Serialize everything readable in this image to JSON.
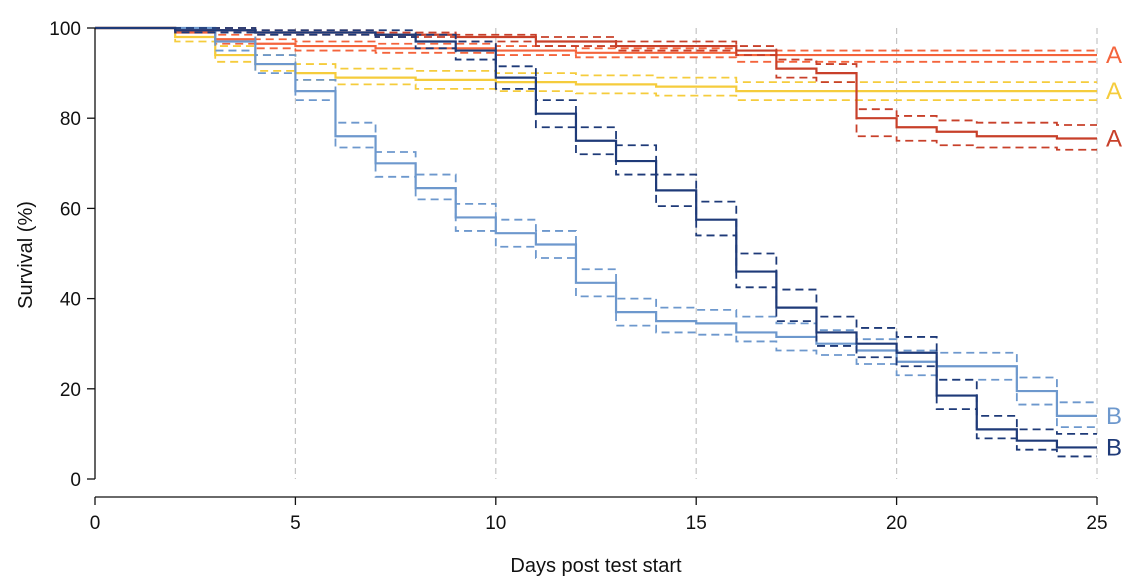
{
  "chart_data": {
    "type": "line",
    "step": true,
    "xlabel": "Days post test start",
    "ylabel": "Survival (%)",
    "xlim": [
      0,
      25
    ],
    "ylim": [
      0,
      100
    ],
    "xticks": [
      0,
      5,
      10,
      15,
      20,
      25
    ],
    "yticks": [
      0,
      20,
      40,
      60,
      80,
      100
    ],
    "vertical_reference_lines": [
      5,
      10,
      15,
      20,
      25
    ],
    "series": [
      {
        "color": "#f4643c",
        "end_label": "A",
        "x": [
          0,
          2,
          3,
          4,
          5,
          7,
          10,
          12,
          16,
          25
        ],
        "estimate": [
          100,
          99,
          97.5,
          96.5,
          96,
          95.5,
          95,
          94.5,
          94,
          94
        ],
        "lower": [
          100,
          98,
          96.5,
          95.5,
          95,
          94.5,
          94,
          93.5,
          92.5,
          92.5
        ],
        "upper": [
          100,
          99.5,
          98.5,
          97.5,
          97,
          96.5,
          96,
          95.5,
          95,
          95
        ]
      },
      {
        "color": "#f5cc3c",
        "end_label": "A",
        "x": [
          0,
          2,
          3,
          4,
          5,
          6,
          8,
          10,
          12,
          14,
          16,
          25
        ],
        "estimate": [
          100,
          98,
          94,
          92,
          90,
          89,
          88.5,
          88,
          87.5,
          87,
          86,
          86
        ],
        "lower": [
          100,
          97,
          92.5,
          90.5,
          88.5,
          87.5,
          86.5,
          86,
          85.5,
          85,
          84,
          84
        ],
        "upper": [
          100,
          99,
          96,
          94,
          92,
          91,
          90.5,
          90,
          89.5,
          89,
          88,
          88
        ]
      },
      {
        "color": "#c8402a",
        "end_label": "A",
        "x": [
          0,
          2,
          4,
          7,
          9,
          11,
          13,
          16,
          17,
          18,
          19,
          20,
          21,
          22,
          24,
          25
        ],
        "estimate": [
          100,
          99.5,
          99,
          98.5,
          98,
          97,
          96,
          95,
          91,
          90,
          80,
          78,
          77,
          76,
          75.5,
          75.5
        ],
        "lower": [
          100,
          99,
          98.5,
          98,
          97,
          96,
          95,
          94,
          89,
          88,
          76,
          75,
          74,
          73.5,
          73,
          73
        ],
        "upper": [
          100,
          100,
          99.5,
          99,
          98.5,
          98,
          97,
          96,
          93,
          92,
          82,
          80.5,
          79.5,
          79,
          78.5,
          78.5
        ]
      },
      {
        "color": "#6d98cd",
        "end_label": "B",
        "x": [
          0,
          3,
          4,
          5,
          6,
          7,
          8,
          9,
          10,
          11,
          12,
          13,
          14,
          15,
          16,
          17,
          18,
          19,
          20,
          21,
          22,
          23,
          24,
          25
        ],
        "estimate": [
          100,
          97,
          92,
          86,
          76,
          70,
          64.5,
          58,
          54.5,
          52,
          43.5,
          37,
          35,
          34.5,
          32.5,
          31.5,
          30,
          28.5,
          26,
          25,
          25,
          19.5,
          14,
          14
        ],
        "lower": [
          100,
          95,
          90,
          84,
          73.5,
          67,
          62,
          55,
          51.5,
          49,
          40.5,
          34,
          32.5,
          32,
          30.5,
          28.5,
          27.5,
          25.5,
          23,
          22,
          22,
          16.5,
          11.5,
          11.5
        ],
        "upper": [
          100,
          99,
          94,
          88.5,
          79,
          72.5,
          67.5,
          61,
          57.5,
          55,
          46.5,
          40,
          38,
          37.5,
          36,
          34.5,
          33,
          31,
          28.5,
          28,
          28,
          22.5,
          17,
          17
        ]
      },
      {
        "color": "#1e3a78",
        "end_label": "B",
        "x": [
          0,
          2,
          4,
          7,
          8,
          9,
          10,
          11,
          12,
          13,
          14,
          15,
          16,
          17,
          18,
          19,
          20,
          21,
          22,
          23,
          24,
          25
        ],
        "estimate": [
          100,
          99.5,
          99,
          98.5,
          97,
          95,
          89,
          81,
          75,
          70.5,
          64,
          57.5,
          46,
          38,
          32.5,
          30,
          28,
          18.5,
          11,
          8.5,
          7,
          7
        ],
        "lower": [
          100,
          99,
          98.5,
          98,
          95.5,
          93,
          86.5,
          78,
          72,
          67.5,
          60.5,
          54,
          42.5,
          35,
          29.5,
          27,
          25,
          15.5,
          9,
          6.5,
          5,
          5
        ],
        "upper": [
          100,
          100,
          99.5,
          99.5,
          98.5,
          97,
          91.5,
          84,
          78,
          74,
          67.5,
          61.5,
          50,
          42,
          36,
          33.5,
          31.5,
          22,
          14,
          11,
          10,
          10
        ]
      }
    ]
  }
}
